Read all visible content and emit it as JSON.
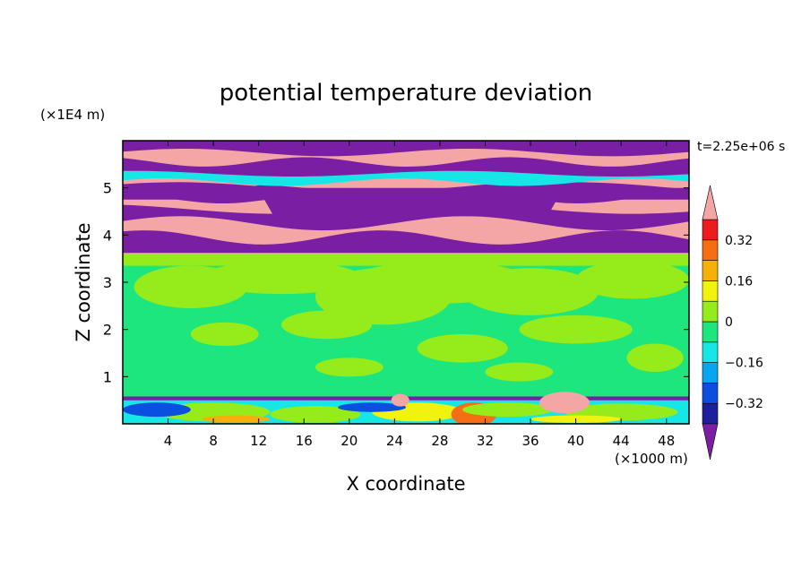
{
  "chart_data": {
    "type": "heatmap",
    "title": "potential temperature deviation",
    "xlabel": "X coordinate",
    "ylabel": "Z coordinate",
    "x_unit": "(×1000 m)",
    "y_unit": "(×1E4 m)",
    "time_label": "t=2.25e+06 s",
    "xlim": [
      0,
      50
    ],
    "ylim": [
      0,
      6
    ],
    "x_ticks": [
      "4",
      "8",
      "12",
      "16",
      "20",
      "24",
      "28",
      "32",
      "36",
      "40",
      "44",
      "48"
    ],
    "y_ticks": [
      "1",
      "2",
      "3",
      "4",
      "5"
    ],
    "colorbar": {
      "levels": [
        -0.4,
        -0.32,
        -0.24,
        -0.16,
        -0.08,
        0,
        0.08,
        0.16,
        0.24,
        0.32,
        0.4
      ],
      "tick_labels": [
        "0.32",
        "0.16",
        "0",
        "−0.16",
        "−0.32"
      ],
      "colors": [
        "#7a1fa3",
        "#1f1f9e",
        "#0b4fe0",
        "#0aa5f0",
        "#16e6e6",
        "#1ee67e",
        "#96eb1a",
        "#f2f20f",
        "#f5b00a",
        "#f56e14",
        "#ec1c1c",
        "#f4a6a6"
      ]
    },
    "bands": [
      {
        "z_range": [
          0,
          0.55
        ],
        "description": "surface layer, mixed near zero with warm and cold patches"
      },
      {
        "z_range": [
          0.55,
          3.6
        ],
        "description": "near-zero deviation (green shades)"
      },
      {
        "z_range": [
          3.6,
          6.0
        ],
        "description": "alternating strong positive (pink) and negative (purple) layers"
      }
    ]
  }
}
